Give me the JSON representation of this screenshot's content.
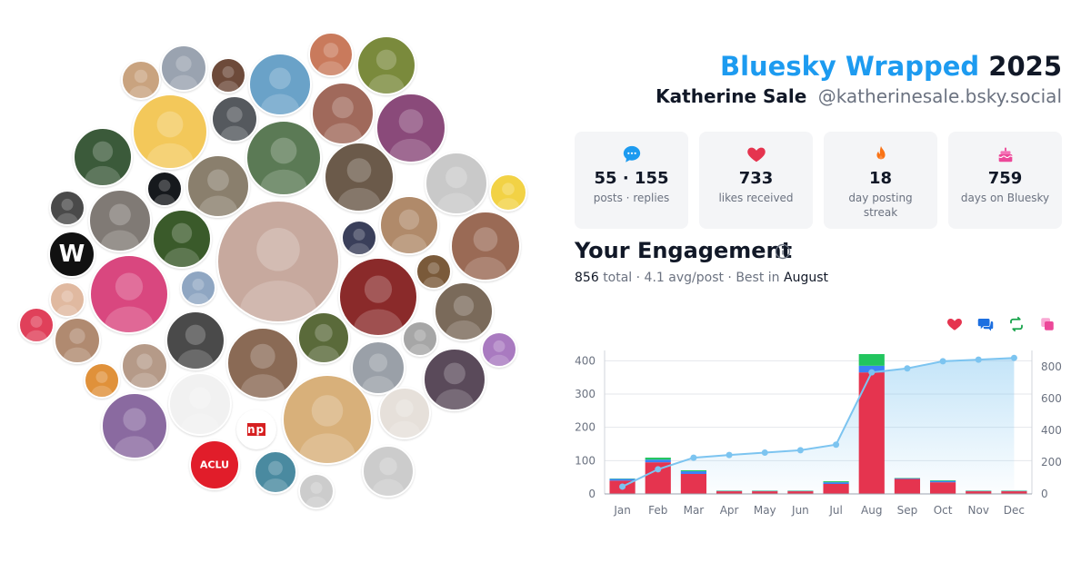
{
  "header": {
    "brand": "Bluesky Wrapped",
    "year": "2025",
    "display_name": "Katherine Sale",
    "handle": "@katherinesale.bsky.social"
  },
  "stats": [
    {
      "icon": "chat-bubble-icon",
      "color": "#1d9bf0",
      "value": "55 · 155",
      "label": "posts · replies"
    },
    {
      "icon": "heart-icon",
      "color": "#e5344f",
      "value": "733",
      "label": "likes received"
    },
    {
      "icon": "flame-icon",
      "color": "#f97316",
      "value": "18",
      "label": "day posting streak"
    },
    {
      "icon": "cake-icon",
      "color": "#ec4899",
      "value": "759",
      "label": "days on Bluesky"
    }
  ],
  "engagement": {
    "title": "Your Engagement",
    "total_value": "856",
    "total_word": "total",
    "avg": "· 4.1 avg/post · Best in",
    "best_month": "August"
  },
  "legend_icons": [
    {
      "name": "likes-legend-heart-icon",
      "color": "#e5344f"
    },
    {
      "name": "replies-legend-chat-icon",
      "color": "#1d6fe0"
    },
    {
      "name": "reposts-legend-repost-icon",
      "color": "#16a34a"
    },
    {
      "name": "quotes-legend-copy-icon",
      "color": "#ec4899"
    }
  ],
  "avatars": [
    {
      "text": "",
      "color": "#c9a37f"
    },
    {
      "text": "",
      "color": "#9aa3b0"
    },
    {
      "text": "",
      "color": "#6d4a3a"
    },
    {
      "text": "",
      "color": "#6aa2c8"
    },
    {
      "text": "",
      "color": "#c97a5c"
    },
    {
      "text": "",
      "color": "#7a8a3c"
    },
    {
      "text": "",
      "color": "#f3c85a"
    },
    {
      "text": "",
      "color": "#55595e"
    },
    {
      "text": "",
      "color": "#a0695b"
    },
    {
      "text": "",
      "color": "#8a4a7a"
    },
    {
      "text": "",
      "color": "#3b5a3a"
    },
    {
      "text": "",
      "color": "#5b7a55"
    },
    {
      "text": "",
      "color": "#8a7f6d"
    },
    {
      "text": "",
      "color": "#16191d"
    },
    {
      "text": "",
      "color": "#6b5a4a"
    },
    {
      "text": "",
      "color": "#c9c9c9"
    },
    {
      "text": "",
      "color": "#f2d245"
    },
    {
      "text": "",
      "color": "#4a4a4a"
    },
    {
      "text": "",
      "color": "#807a75"
    },
    {
      "text": "",
      "color": "#3a5a2a"
    },
    {
      "text": "",
      "color": "#c7a99e"
    },
    {
      "text": "",
      "color": "#3a3f5a"
    },
    {
      "text": "",
      "color": "#b08a6a"
    },
    {
      "text": "",
      "color": "#9a6a55"
    },
    {
      "text": "W",
      "color": "#111111"
    },
    {
      "text": "",
      "color": "#7a5a3a"
    },
    {
      "text": "",
      "color": "#d9477f"
    },
    {
      "text": "",
      "color": "#e0b9a0"
    },
    {
      "text": "",
      "color": "#8fa6c2"
    },
    {
      "text": "",
      "color": "#8a2a2a"
    },
    {
      "text": "",
      "color": "#e0405a"
    },
    {
      "text": "",
      "color": "#7a6a5a"
    },
    {
      "text": "",
      "color": "#5a6a3a"
    },
    {
      "text": "",
      "color": "#b08a70"
    },
    {
      "text": "",
      "color": "#4a4a4a"
    },
    {
      "text": "",
      "color": "#8a6a55"
    },
    {
      "text": "",
      "color": "#a6a6a6"
    },
    {
      "text": "",
      "color": "#a97ac0"
    },
    {
      "text": "",
      "color": "#b59a88"
    },
    {
      "text": "",
      "color": "#9aa0a8"
    },
    {
      "text": "",
      "color": "#5a4a5a"
    },
    {
      "text": "",
      "color": "#e0913a"
    },
    {
      "text": "",
      "color": "#8a6aa0"
    },
    {
      "text": "npr",
      "color": "#ffffff"
    },
    {
      "text": "",
      "color": "#f1f1f1"
    },
    {
      "text": "",
      "color": "#d8b07a"
    },
    {
      "text": "",
      "color": "#e6e0da"
    },
    {
      "text": "ACLU",
      "color": "#e11d2a"
    },
    {
      "text": "",
      "color": "#4a8aa0"
    }
  ],
  "chart_data": {
    "type": "bar",
    "categories": [
      "Jan",
      "Feb",
      "Mar",
      "Apr",
      "May",
      "Jun",
      "Jul",
      "Aug",
      "Sep",
      "Oct",
      "Nov",
      "Dec"
    ],
    "series": [
      {
        "name": "Likes",
        "color": "#e5344f",
        "values": [
          40,
          95,
          60,
          8,
          8,
          8,
          30,
          365,
          45,
          35,
          8,
          8
        ]
      },
      {
        "name": "Replies",
        "color": "#3b82f6",
        "values": [
          5,
          8,
          8,
          1,
          1,
          1,
          5,
          20,
          2,
          4,
          1,
          1
        ]
      },
      {
        "name": "Reposts",
        "color": "#22c55e",
        "values": [
          1,
          6,
          3,
          1,
          1,
          1,
          3,
          35,
          1,
          2,
          1,
          1
        ]
      },
      {
        "name": "Quotes",
        "color": "#ec4899",
        "values": [
          0,
          0,
          0,
          0,
          0,
          0,
          0,
          0,
          0,
          0,
          0,
          0
        ]
      }
    ],
    "cumulative": {
      "color": "#7cc4f0",
      "values": [
        46,
        155,
        228,
        245,
        260,
        275,
        310,
        765,
        790,
        835,
        845,
        856
      ]
    },
    "left_axis": {
      "ylim": [
        0,
        420
      ],
      "ticks": [
        0,
        100,
        200,
        300,
        400
      ]
    },
    "right_axis": {
      "ylim": [
        0,
        880
      ],
      "ticks": [
        0,
        200,
        400,
        600,
        800
      ]
    },
    "grid": true
  }
}
